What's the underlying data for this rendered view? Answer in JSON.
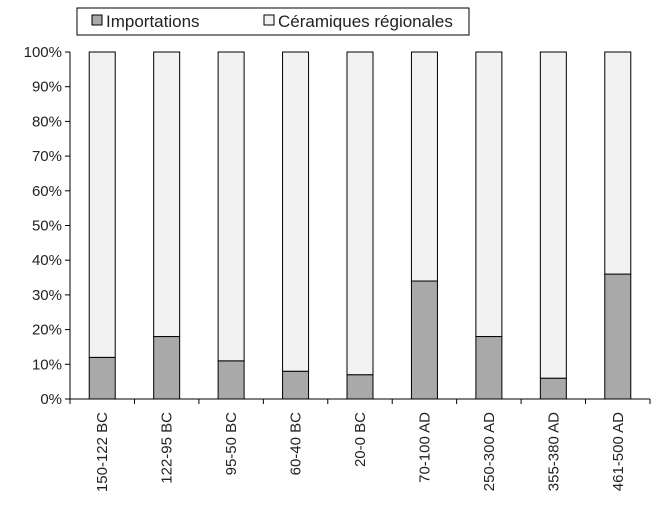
{
  "chart_data": {
    "type": "bar",
    "stacked": true,
    "percent": true,
    "categories": [
      "150-122 BC",
      "122-95 BC",
      "95-50 BC",
      "60-40 BC",
      "20-0 BC",
      "70-100 AD",
      "250-300 AD",
      "355-380 AD",
      "461-500 AD"
    ],
    "series": [
      {
        "name": "Importations",
        "values": [
          12,
          18,
          11,
          8,
          7,
          34,
          18,
          6,
          36
        ],
        "color": "#a9a9a9"
      },
      {
        "name": "Céramiques régionales",
        "values": [
          88,
          82,
          89,
          92,
          93,
          66,
          82,
          94,
          64
        ],
        "color": "#f2f2f2"
      }
    ],
    "ylim": [
      0,
      100
    ],
    "y_ticks": [
      "0%",
      "10%",
      "20%",
      "30%",
      "40%",
      "50%",
      "60%",
      "70%",
      "80%",
      "90%",
      "100%"
    ],
    "xlabel": "",
    "ylabel": "",
    "title": "",
    "legend_position": "top",
    "grid": false
  }
}
